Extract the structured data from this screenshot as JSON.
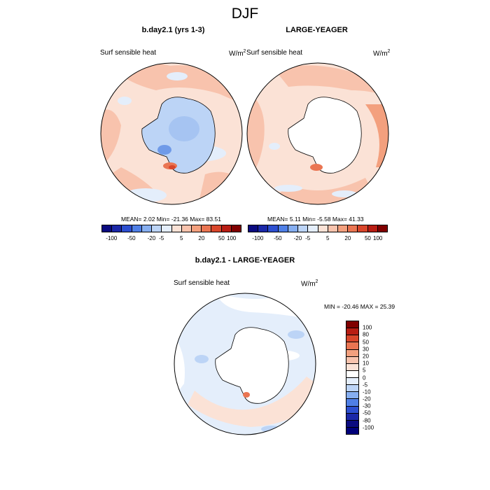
{
  "title": "DJF",
  "panels": [
    {
      "title": "b.day2.1 (yrs 1-3)",
      "variable": "Surf sensible heat",
      "unit": "W/m",
      "unit_sup": "2",
      "stats": "MEAN=  2.02  Min= -21.36  Max=  83.51"
    },
    {
      "title": "LARGE-YEAGER",
      "variable": "Surf sensible heat",
      "unit": "W/m",
      "unit_sup": "2",
      "stats": "MEAN=  5.11  Min=  -5.58  Max=  41.33"
    },
    {
      "title": "b.day2.1 - LARGE-YEAGER",
      "variable": "Surf sensible heat",
      "unit": "W/m",
      "unit_sup": "2",
      "stats": "MIN = -20.46 MAX =  25.39"
    }
  ],
  "colorbar_h": {
    "colors": [
      "#0b0b80",
      "#1b28a8",
      "#2d4fd0",
      "#4f7fe6",
      "#86aef0",
      "#bcd4f6",
      "#e4eefb",
      "#fbe2d6",
      "#f8c3ad",
      "#f3a07e",
      "#ea7552",
      "#d9462b",
      "#b81d13",
      "#800000"
    ],
    "labels": [
      "-100",
      "-50",
      "-20",
      "-5",
      "5",
      "20",
      "50",
      "100"
    ]
  },
  "colorbar_v": {
    "colors": [
      "#800000",
      "#b81d13",
      "#d9462b",
      "#ea7552",
      "#f3a07e",
      "#f8c3ad",
      "#fbe2d6",
      "#ffffff",
      "#e4eefb",
      "#bcd4f6",
      "#86aef0",
      "#4f7fe6",
      "#2d4fd0",
      "#1b28a8",
      "#0b0b80",
      "#00007a"
    ],
    "labels": [
      "100",
      "80",
      "50",
      "30",
      "20",
      "10",
      "5",
      "0",
      "-5",
      "-10",
      "-20",
      "-30",
      "-50",
      "-80",
      "-100"
    ]
  }
}
